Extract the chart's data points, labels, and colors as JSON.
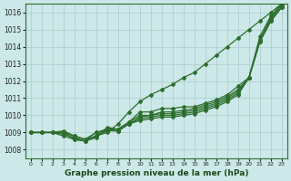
{
  "xlabel": "Graphe pression niveau de la mer (hPa)",
  "ylim": [
    1007.5,
    1016.5
  ],
  "xlim": [
    -0.5,
    23.5
  ],
  "yticks": [
    1008,
    1009,
    1010,
    1011,
    1012,
    1013,
    1014,
    1015,
    1016
  ],
  "xticks": [
    0,
    1,
    2,
    3,
    4,
    5,
    6,
    7,
    8,
    9,
    10,
    11,
    12,
    13,
    14,
    15,
    16,
    17,
    18,
    19,
    20,
    21,
    22,
    23
  ],
  "bg_color": "#cce8e8",
  "grid_color": "#aacccc",
  "line_color": "#2d6e2d",
  "lines": [
    [
      1009.0,
      1009.0,
      1009.0,
      1009.0,
      1008.8,
      1008.6,
      1009.0,
      1009.1,
      1009.1,
      1009.5,
      1009.7,
      1009.8,
      1009.9,
      1009.9,
      1010.0,
      1010.1,
      1010.3,
      1010.5,
      1010.8,
      1011.2,
      1012.2,
      1014.3,
      1015.5,
      1016.3
    ],
    [
      1009.0,
      1009.0,
      1009.0,
      1009.1,
      1008.8,
      1008.6,
      1009.0,
      1009.2,
      1009.1,
      1009.5,
      1009.8,
      1009.9,
      1010.0,
      1010.0,
      1010.1,
      1010.2,
      1010.4,
      1010.6,
      1010.9,
      1011.3,
      1012.2,
      1014.3,
      1015.5,
      1016.3
    ],
    [
      1009.0,
      1009.0,
      1009.0,
      1008.9,
      1008.7,
      1008.5,
      1008.8,
      1009.1,
      1009.1,
      1009.5,
      1009.9,
      1010.0,
      1010.1,
      1010.1,
      1010.2,
      1010.3,
      1010.5,
      1010.7,
      1011.0,
      1011.4,
      1012.2,
      1014.4,
      1015.6,
      1016.4
    ],
    [
      1009.0,
      1009.0,
      1009.0,
      1008.8,
      1008.6,
      1008.5,
      1008.8,
      1009.2,
      1009.2,
      1009.6,
      1010.0,
      1010.0,
      1010.2,
      1010.2,
      1010.3,
      1010.4,
      1010.6,
      1010.8,
      1011.1,
      1011.5,
      1012.2,
      1014.4,
      1015.7,
      1016.5
    ],
    [
      1009.0,
      1009.0,
      1009.0,
      1009.0,
      1008.6,
      1008.5,
      1008.7,
      1009.3,
      1009.2,
      1009.6,
      1010.2,
      1010.2,
      1010.4,
      1010.4,
      1010.5,
      1010.5,
      1010.7,
      1010.9,
      1011.2,
      1011.7,
      1012.2,
      1014.6,
      1015.8,
      1016.5
    ]
  ],
  "line_top": [
    1009.0,
    1009.0,
    1009.0,
    1009.0,
    1008.8,
    1008.6,
    1008.8,
    1009.0,
    1009.5,
    1010.2,
    1010.8,
    1011.2,
    1011.5,
    1011.8,
    1012.2,
    1012.5,
    1013.0,
    1013.5,
    1014.0,
    1014.5,
    1015.0,
    1015.5,
    1016.0,
    1016.5
  ]
}
